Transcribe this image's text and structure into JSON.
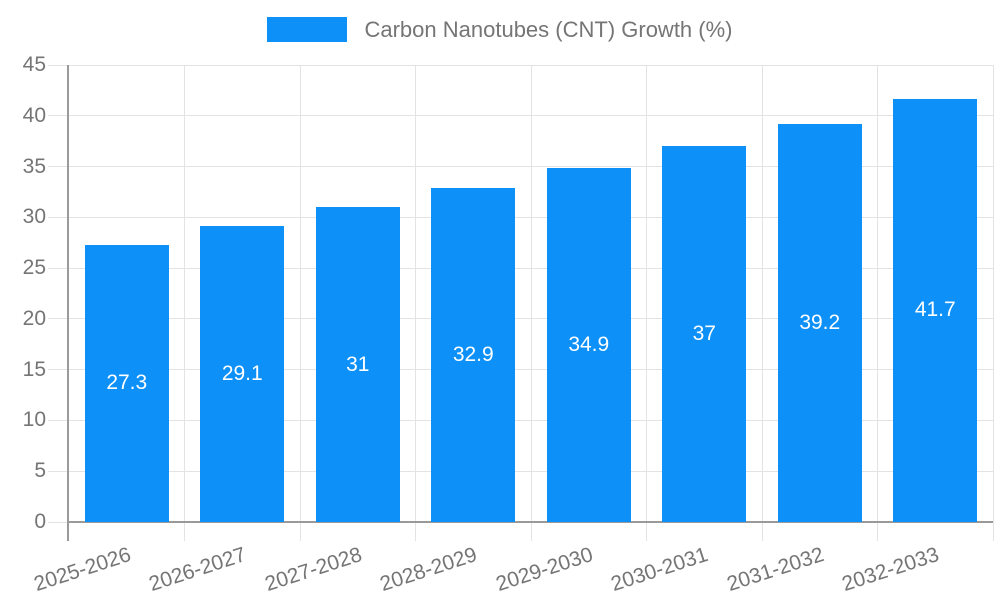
{
  "chart_data": {
    "type": "bar",
    "categories": [
      "2025-2026",
      "2026-2027",
      "2027-2028",
      "2028-2029",
      "2029-2030",
      "2030-2031",
      "2031-2032",
      "2032-2033"
    ],
    "series": [
      {
        "name": "Carbon Nanotubes (CNT) Growth (%)",
        "values": [
          27.3,
          29.1,
          31,
          32.9,
          34.9,
          37,
          39.2,
          41.7
        ],
        "display_values": [
          "27.3",
          "29.1",
          "31",
          "32.9",
          "34.9",
          "37",
          "39.2",
          "41.7"
        ],
        "color": "#0d90f8"
      }
    ],
    "legend": {
      "label": "Carbon Nanotubes (CNT) Growth (%)",
      "position": "top"
    },
    "xlabel": "",
    "ylabel": "",
    "ylim": [
      0,
      45
    ],
    "yticks": [
      0,
      5,
      10,
      15,
      20,
      25,
      30,
      35,
      40,
      45
    ],
    "grid": true,
    "bar_value_label_position": "center-inside",
    "colors": {
      "bar": "#0d90f8",
      "grid": "#e3e3e3",
      "axis": "#9a9a9a",
      "tick_text": "#757575",
      "legend_text": "#757575",
      "bar_label": "#ffffff",
      "background": "#ffffff"
    }
  }
}
